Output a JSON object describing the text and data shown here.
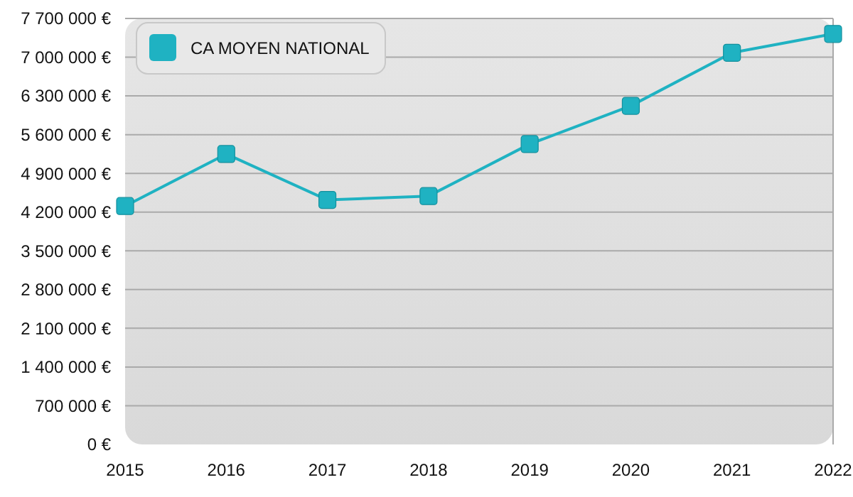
{
  "chart_data": {
    "type": "line",
    "categories": [
      "2015",
      "2016",
      "2017",
      "2018",
      "2019",
      "2020",
      "2021",
      "2022"
    ],
    "series": [
      {
        "name": "CA MOYEN NATIONAL",
        "color": "#1fb2c2",
        "values": [
          4310000,
          5250000,
          4420000,
          4490000,
          5430000,
          6120000,
          7080000,
          7420000
        ]
      }
    ],
    "ylim": [
      0,
      7700000
    ],
    "yticks": [
      {
        "value": 0,
        "label": "0 €"
      },
      {
        "value": 700000,
        "label": "700 000 €"
      },
      {
        "value": 1400000,
        "label": "1 400 000 €"
      },
      {
        "value": 2100000,
        "label": "2 100 000 €"
      },
      {
        "value": 2800000,
        "label": "2 800 000 €"
      },
      {
        "value": 3500000,
        "label": "3 500 000 €"
      },
      {
        "value": 4200000,
        "label": "4 200 000 €"
      },
      {
        "value": 4900000,
        "label": "4 900 000 €"
      },
      {
        "value": 5600000,
        "label": "5 600 000 €"
      },
      {
        "value": 6300000,
        "label": "6 300 000 €"
      },
      {
        "value": 7000000,
        "label": "7 000 000 €"
      },
      {
        "value": 7700000,
        "label": "7 700 000 €"
      }
    ],
    "grid": "y",
    "legend": "top left",
    "marker": "square",
    "line_style": "solid"
  }
}
